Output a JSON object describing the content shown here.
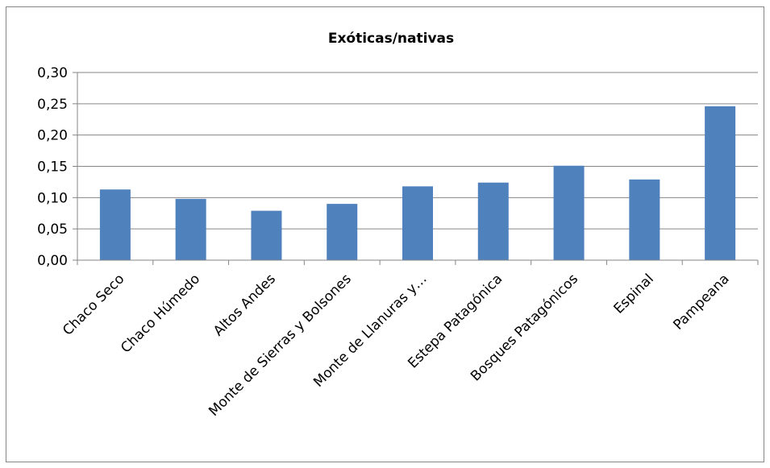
{
  "chart_data": {
    "type": "bar",
    "title": "Exóticas/nativas",
    "xlabel": "",
    "ylabel": "",
    "categories": [
      "Chaco Seco",
      "Chaco Húmedo",
      "Altos Andes",
      "Monte de Sierras y Bolsones",
      "Monte de Llanuras y…",
      "Estepa Patagónica",
      "Bosques Patagónicos",
      "Espinal",
      "Pampeana"
    ],
    "values": [
      0.113,
      0.098,
      0.079,
      0.09,
      0.118,
      0.124,
      0.151,
      0.129,
      0.246
    ],
    "ylim": [
      0,
      0.3
    ],
    "yticks": [
      "0,00",
      "0,05",
      "0,10",
      "0,15",
      "0,20",
      "0,25",
      "0,30"
    ],
    "grid": true,
    "legend": "none",
    "colors": {
      "bar": "#4F81BD",
      "grid": "#868686",
      "axis": "#868686"
    }
  }
}
